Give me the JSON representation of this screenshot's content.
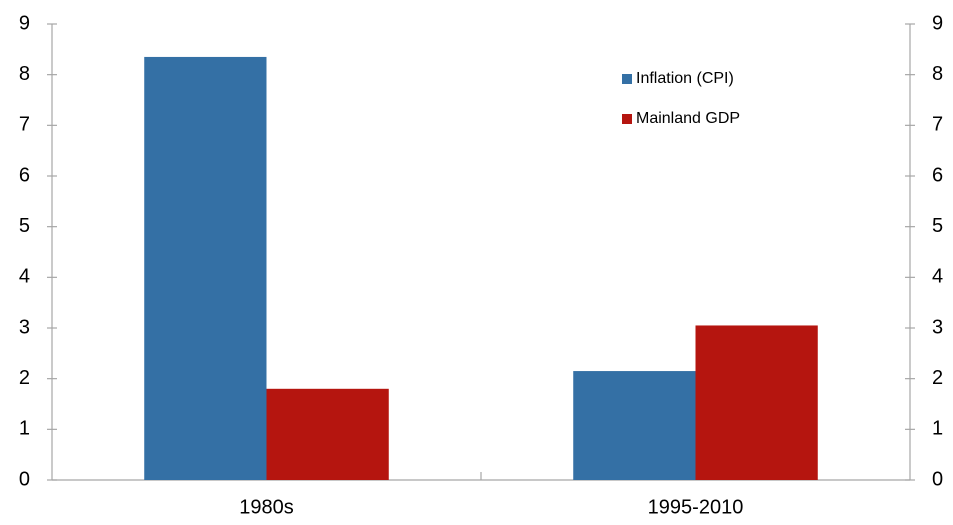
{
  "chart_data": {
    "type": "bar",
    "categories": [
      "1980s",
      "1995-2010"
    ],
    "series": [
      {
        "name": "Inflation (CPI)",
        "color": "#3470a5",
        "values": [
          8.35,
          2.15
        ]
      },
      {
        "name": "Mainland GDP",
        "color": "#b5150f",
        "values": [
          1.8,
          3.05
        ]
      }
    ],
    "ylim": [
      0,
      9
    ],
    "yticks": [
      0,
      1,
      2,
      3,
      4,
      5,
      6,
      7,
      8,
      9
    ],
    "y2lim": [
      0,
      9
    ],
    "y2ticks": [
      0,
      1,
      2,
      3,
      4,
      5,
      6,
      7,
      8,
      9
    ],
    "grid": false,
    "legend": "top-right"
  }
}
